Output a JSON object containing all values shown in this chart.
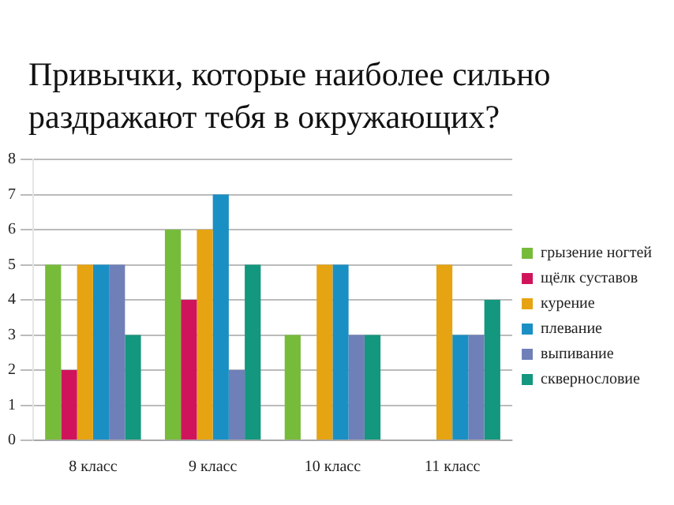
{
  "chart_data": {
    "type": "bar",
    "title": "Привычки, которые наиболее сильно раздражают тебя в окружающих?",
    "categories": [
      "8 класс",
      "9 класс",
      "10 класс",
      "11 класс"
    ],
    "series": [
      {
        "name": "грызение ногтей",
        "color": "#77bb3a",
        "values": [
          5,
          6,
          3,
          0
        ]
      },
      {
        "name": "щёлк суставов",
        "color": "#d0145c",
        "values": [
          2,
          4,
          0,
          0
        ]
      },
      {
        "name": "курение",
        "color": "#e6a312",
        "values": [
          5,
          6,
          5,
          5
        ]
      },
      {
        "name": "плевание",
        "color": "#1a8fc4",
        "values": [
          5,
          7,
          5,
          3
        ]
      },
      {
        "name": "выпивание",
        "color": "#6f7fb8",
        "values": [
          5,
          2,
          3,
          3
        ]
      },
      {
        "name": "сквернословие",
        "color": "#13977e",
        "values": [
          3,
          5,
          3,
          4
        ]
      }
    ],
    "ylim": [
      0,
      8
    ],
    "yticks": [
      0,
      1,
      2,
      3,
      4,
      5,
      6,
      7,
      8
    ],
    "grid": "y",
    "legend": "right"
  }
}
